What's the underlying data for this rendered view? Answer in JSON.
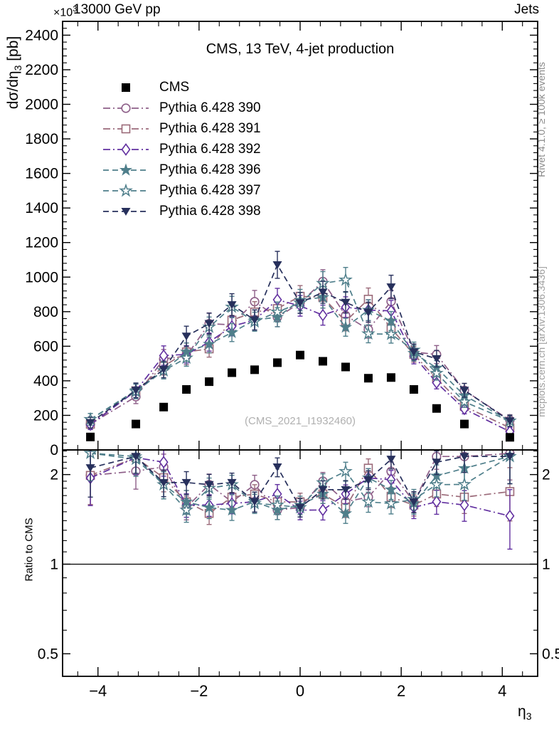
{
  "header": {
    "left": "13000 GeV pp",
    "right": "Jets"
  },
  "title": "CMS, 13 TeV, 4-jet production",
  "watermark": "(CMS_2021_I1932460)",
  "side_notes": {
    "top": "Rivet 4.1.0, ≥ 100k events",
    "bottom": "mcplots.cern.ch [arXiv:1306.3436]"
  },
  "labels": {
    "y_main": {
      "prefix": "dσ/dη",
      "sub": "3",
      "suffix": " [pb]"
    },
    "y_ratio": "Ratio to CMS",
    "x": {
      "base": "η",
      "sub": "3"
    },
    "multiplier": {
      "base": "×10",
      "sup": "3"
    }
  },
  "chart_data": {
    "type": "scatter",
    "title": "CMS, 13 TeV, 4-jet production",
    "xlabel": "eta_3",
    "ylabel": "dsigma/deta_3 [pb] (axis values ×10³)",
    "x": [
      -4.15,
      -3.25,
      -2.7,
      -2.25,
      -1.8,
      -1.35,
      -0.9,
      -0.45,
      0,
      0.45,
      0.9,
      1.35,
      1.8,
      2.25,
      2.7,
      3.25,
      4.15
    ],
    "xlim": [
      -4.7,
      4.7
    ],
    "x_major_ticks": [
      -4,
      -2,
      0,
      2,
      4
    ],
    "x_minor_step": 0.4,
    "main_panel": {
      "scale": "linear",
      "ylim": [
        0,
        2480
      ],
      "major_ticks": [
        0,
        200,
        400,
        600,
        800,
        1000,
        1200,
        1400,
        1600,
        1800,
        2000,
        2200,
        2400
      ],
      "minor_step": 40,
      "grid": false
    },
    "ratio_panel": {
      "scale": "log",
      "ylim": [
        0.42,
        2.42
      ],
      "ticks": [
        0.5,
        1,
        2
      ],
      "minor_ticks": [
        0.6,
        0.7,
        0.8,
        0.9,
        1.1,
        1.2,
        1.3,
        1.4,
        1.5,
        1.6,
        1.7,
        1.8,
        1.9,
        2.1,
        2.2,
        2.3,
        2.4
      ],
      "reference_line": 1,
      "label_both_sides": true
    },
    "legend_position": "top-left",
    "series": [
      {
        "name": "CMS",
        "reference": true,
        "color": "#000000",
        "marker": "square-filled",
        "line": "none",
        "values": [
          75,
          150,
          248,
          350,
          395,
          447,
          464,
          505,
          549,
          513,
          480,
          415,
          419,
          350,
          240,
          150,
          73
        ],
        "errors": [
          4,
          5,
          8,
          11,
          12,
          14,
          14,
          15,
          17,
          15,
          14,
          13,
          13,
          11,
          8,
          5,
          4
        ]
      },
      {
        "name": "Pythia 6.428 390",
        "reference": false,
        "color": "#8d5e88",
        "marker": "circle-open",
        "line": "dashdot",
        "values": [
          149,
          308,
          526,
          543,
          731,
          724,
          858,
          768,
          851,
          975,
          778,
          697,
          859,
          567,
          552,
          345,
          172
        ],
        "errors": [
          30,
          40,
          55,
          50,
          62,
          55,
          65,
          55,
          60,
          68,
          55,
          50,
          65,
          45,
          52,
          40,
          32
        ]
      },
      {
        "name": "Pythia 6.428 391",
        "reference": false,
        "color": "#9b6a79",
        "marker": "square-open",
        "line": "dashdot",
        "values": [
          149,
          342,
          484,
          567,
          585,
          751,
          798,
          818,
          889,
          883,
          744,
          872,
          704,
          553,
          413,
          252,
          128
        ],
        "errors": [
          30,
          42,
          50,
          52,
          48,
          58,
          60,
          60,
          62,
          62,
          55,
          65,
          55,
          45,
          38,
          30,
          26
        ]
      },
      {
        "name": "Pythia 6.428 392",
        "reference": false,
        "color": "#6230a0",
        "marker": "diamond-open",
        "line": "dashdot",
        "values": [
          146,
          342,
          546,
          553,
          624,
          715,
          752,
          869,
          834,
          780,
          826,
          809,
          805,
          543,
          389,
          237,
          106
        ],
        "errors": [
          28,
          42,
          56,
          50,
          52,
          55,
          58,
          66,
          60,
          58,
          60,
          60,
          60,
          45,
          36,
          28,
          24
        ]
      },
      {
        "name": "Pythia 6.428 396",
        "reference": false,
        "color": "#4f7f8b",
        "marker": "star-filled",
        "line": "dashed",
        "values": [
          177,
          345,
          459,
          567,
          612,
          679,
          752,
          768,
          867,
          883,
          710,
          809,
          746,
          560,
          475,
          315,
          168
        ],
        "errors": [
          34,
          42,
          48,
          52,
          50,
          52,
          58,
          55,
          62,
          62,
          52,
          60,
          55,
          45,
          42,
          34,
          32
        ]
      },
      {
        "name": "Pythia 6.428 397",
        "reference": false,
        "color": "#4f7f8b",
        "marker": "star-open",
        "line": "dashed",
        "values": [
          177,
          338,
          459,
          532,
          711,
          827,
          742,
          798,
          851,
          964,
          984,
          672,
          670,
          578,
          444,
          278,
          168
        ],
        "errors": [
          34,
          42,
          48,
          48,
          58,
          62,
          55,
          58,
          60,
          68,
          72,
          52,
          52,
          46,
          40,
          32,
          32
        ]
      },
      {
        "name": "Pythia 6.428 398",
        "reference": false,
        "color": "#27305c",
        "marker": "triangle-down-filled",
        "line": "dashed",
        "values": [
          158,
          345,
          466,
          658,
          731,
          840,
          752,
          1071,
          851,
          913,
          854,
          797,
          943,
          567,
          528,
          345,
          168
        ],
        "errors": [
          32,
          42,
          48,
          58,
          60,
          64,
          58,
          78,
          60,
          64,
          62,
          58,
          68,
          46,
          48,
          40,
          32
        ]
      }
    ]
  }
}
